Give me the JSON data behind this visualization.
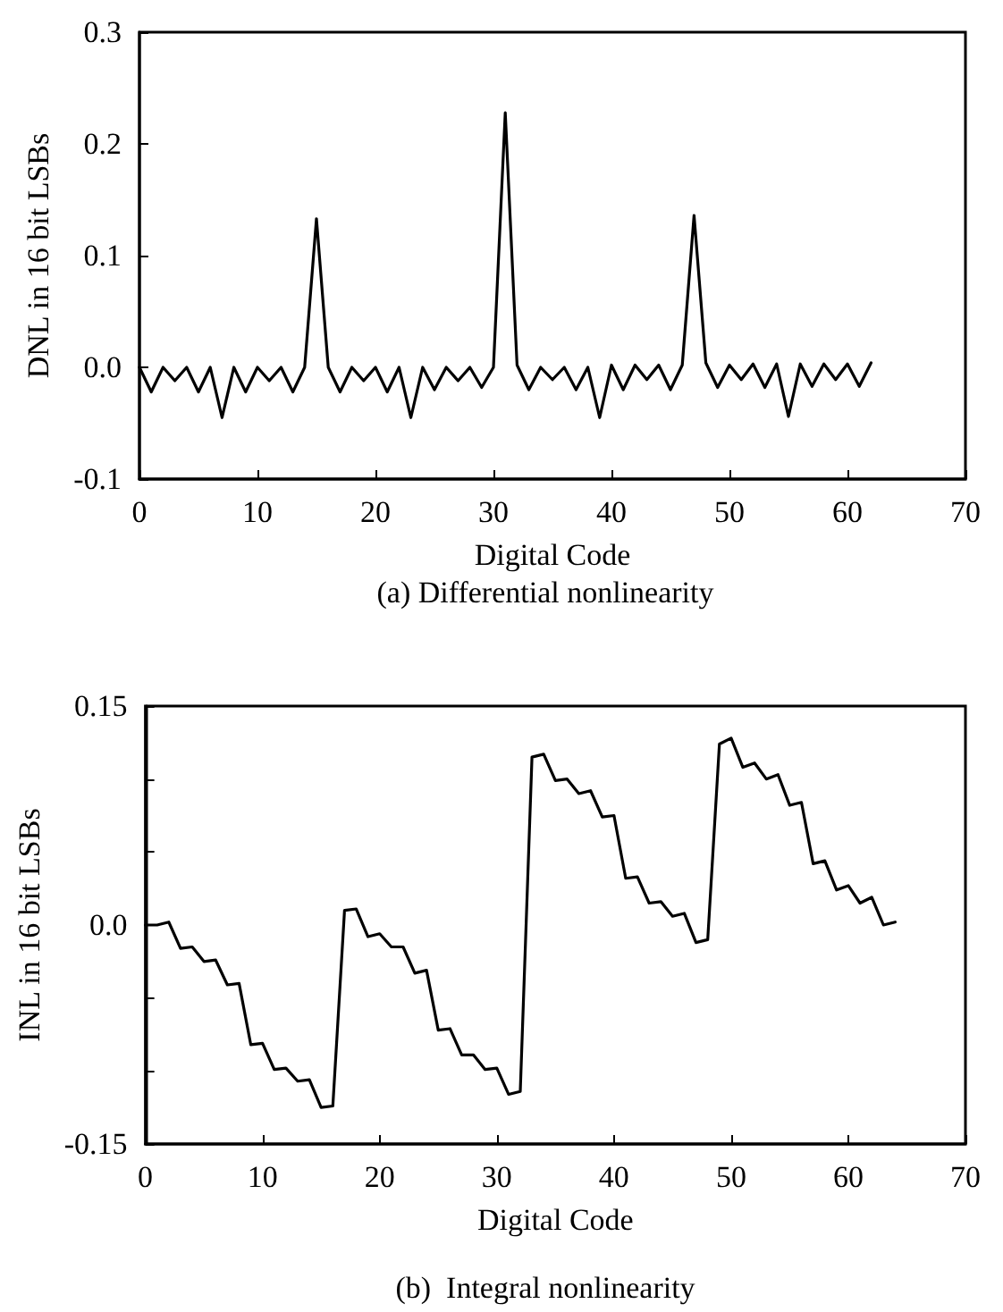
{
  "chart_data": [
    {
      "type": "line",
      "title": "(a) Differential nonlinearity",
      "xlabel": "Digital Code",
      "ylabel": "DNL in 16 bit LSBs",
      "xlim": [
        0,
        70
      ],
      "xticks": [
        0,
        10,
        20,
        30,
        40,
        50,
        60,
        70
      ],
      "ylim": [
        -0.1,
        0.3
      ],
      "yticks": [
        -0.1,
        {
          "value": 0,
          "label": "0.0"
        },
        0.1,
        0.2,
        0.3
      ],
      "grid": false,
      "line_style": "solid",
      "series": [
        {
          "color": "#000000",
          "x": [
            0,
            1,
            2,
            3,
            4,
            5,
            6,
            7,
            8,
            9,
            10,
            11,
            12,
            13,
            14,
            15,
            16,
            17,
            18,
            19,
            20,
            21,
            22,
            23,
            24,
            25,
            26,
            27,
            28,
            29,
            30,
            31,
            32,
            33,
            34,
            35,
            36,
            37,
            38,
            39,
            40,
            41,
            42,
            43,
            44,
            45,
            46,
            47,
            48,
            49,
            50,
            51,
            52,
            53,
            54,
            55,
            56,
            57,
            58,
            59,
            60,
            61,
            62
          ],
          "values": [
            0,
            -0.022,
            0,
            -0.012,
            0,
            -0.022,
            0,
            -0.045,
            0,
            -0.022,
            0,
            -0.012,
            0,
            -0.022,
            0,
            0.133,
            0,
            -0.022,
            0,
            -0.012,
            0,
            -0.022,
            0,
            -0.045,
            0,
            -0.02,
            0,
            -0.012,
            0,
            -0.018,
            0,
            0.228,
            0.002,
            -0.02,
            0,
            -0.011,
            0,
            -0.02,
            0,
            -0.045,
            0.002,
            -0.02,
            0.002,
            -0.011,
            0.002,
            -0.02,
            0.002,
            0.136,
            0.004,
            -0.018,
            0.002,
            -0.011,
            0.003,
            -0.018,
            0.003,
            -0.044,
            0.003,
            -0.017,
            0.003,
            -0.011,
            0.003,
            -0.017,
            0.004
          ]
        }
      ]
    },
    {
      "type": "line",
      "title": "(b)  Integral nonlinearity",
      "xlabel": "Digital Code",
      "ylabel": "INL in 16 bit LSBs",
      "xlim": [
        0,
        70
      ],
      "xticks": [
        0,
        10,
        20,
        30,
        40,
        50,
        60,
        70
      ],
      "ylim": [
        -0.15,
        0.15
      ],
      "yticks": [
        -0.15,
        {
          "value": -0.1,
          "label": null
        },
        {
          "value": -0.05,
          "label": null
        },
        {
          "value": 0,
          "label": "0.0"
        },
        {
          "value": 0.05,
          "label": null
        },
        {
          "value": 0.1,
          "label": null
        },
        0.15
      ],
      "grid": false,
      "line_style": "solid",
      "series": [
        {
          "color": "#000000",
          "x": [
            0,
            1,
            2,
            3,
            4,
            5,
            6,
            7,
            8,
            9,
            10,
            11,
            12,
            13,
            14,
            15,
            16,
            17,
            18,
            19,
            20,
            21,
            22,
            23,
            24,
            25,
            26,
            27,
            28,
            29,
            30,
            31,
            32,
            33,
            34,
            35,
            36,
            37,
            38,
            39,
            40,
            41,
            42,
            43,
            44,
            45,
            46,
            47,
            48,
            49,
            50,
            51,
            52,
            53,
            54,
            55,
            56,
            57,
            58,
            59,
            60,
            61,
            62,
            63,
            64
          ],
          "values": [
            0,
            0,
            0.002,
            -0.016,
            -0.015,
            -0.025,
            -0.024,
            -0.041,
            -0.04,
            -0.082,
            -0.081,
            -0.099,
            -0.098,
            -0.107,
            -0.106,
            -0.125,
            -0.124,
            0.01,
            0.011,
            -0.008,
            -0.006,
            -0.015,
            -0.015,
            -0.033,
            -0.031,
            -0.072,
            -0.071,
            -0.089,
            -0.089,
            -0.099,
            -0.098,
            -0.116,
            -0.114,
            0.115,
            0.117,
            0.099,
            0.1,
            0.09,
            0.092,
            0.074,
            0.075,
            0.032,
            0.033,
            0.015,
            0.016,
            0.006,
            0.008,
            -0.012,
            -0.01,
            0.124,
            0.128,
            0.108,
            0.111,
            0.1,
            0.103,
            0.082,
            0.084,
            0.042,
            0.044,
            0.024,
            0.027,
            0.015,
            0.019,
            0,
            0.002
          ]
        }
      ]
    }
  ]
}
